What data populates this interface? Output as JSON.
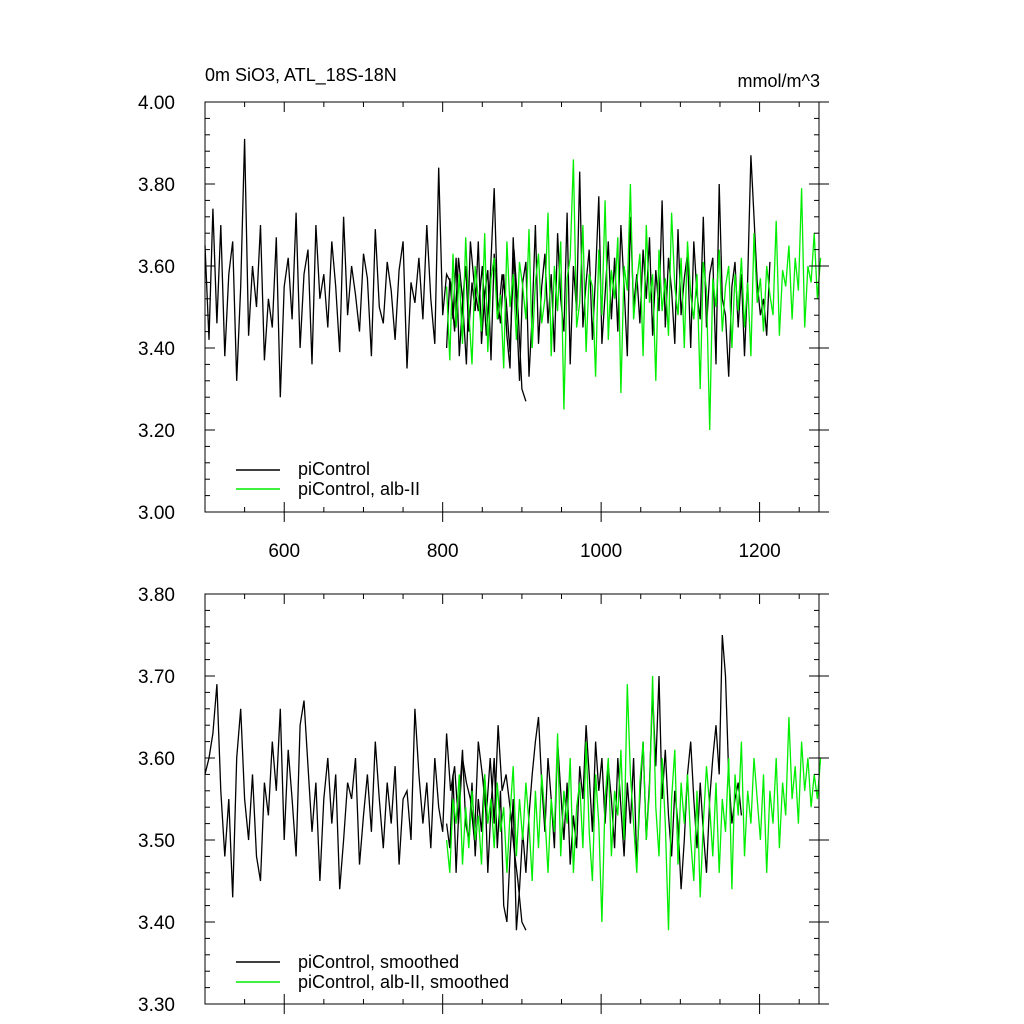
{
  "chart_data": [
    {
      "type": "line",
      "title": "0m SiO3, ATL_18S-18N",
      "units": "mmol/m^3",
      "xlim": [
        500,
        1275
      ],
      "ylim": [
        3.0,
        4.0
      ],
      "x_ticks": [
        600,
        800,
        1000,
        1200
      ],
      "x_tick_labels": [
        "600",
        "800",
        "1000",
        "1200"
      ],
      "y_ticks": [
        3.0,
        3.2,
        3.4,
        3.6,
        3.8,
        4.0
      ],
      "y_tick_labels": [
        "3.00",
        "3.20",
        "3.40",
        "3.60",
        "3.80",
        "4.00"
      ],
      "grid": false,
      "legend_position": "bottom-left",
      "series": [
        {
          "name": "piControl",
          "color": "#000000",
          "x_start": 500,
          "x_step": 5,
          "y": [
            3.65,
            3.42,
            3.74,
            3.46,
            3.7,
            3.38,
            3.58,
            3.66,
            3.32,
            3.55,
            3.91,
            3.43,
            3.6,
            3.5,
            3.7,
            3.37,
            3.52,
            3.45,
            3.67,
            3.28,
            3.55,
            3.62,
            3.47,
            3.73,
            3.4,
            3.58,
            3.64,
            3.36,
            3.7,
            3.52,
            3.58,
            3.45,
            3.66,
            3.55,
            3.39,
            3.72,
            3.48,
            3.6,
            3.53,
            3.44,
            3.63,
            3.57,
            3.38,
            3.69,
            3.5,
            3.46,
            3.61,
            3.54,
            3.42,
            3.59,
            3.66,
            3.35,
            3.56,
            3.51,
            3.62,
            3.47,
            3.7,
            3.52,
            3.41,
            3.84,
            3.48,
            3.58,
            3.56,
            3.44,
            3.62,
            3.52,
            3.36,
            3.66,
            3.55,
            3.49,
            3.6,
            3.43,
            3.57,
            3.79,
            3.47,
            3.58,
            3.52,
            3.39,
            3.64,
            3.5,
            3.3,
            3.27
          ],
          "x_labels_note": ""
        },
        {
          "name": "piControl",
          "color": "#000000",
          "x_start": 805,
          "x_step": 4,
          "y": [
            3.4,
            3.57,
            3.47,
            3.62,
            3.38,
            3.51,
            3.6,
            3.44,
            3.56,
            3.49,
            3.66,
            3.41,
            3.53,
            3.59,
            3.37,
            3.63,
            3.52,
            3.46,
            3.58,
            3.43,
            3.35,
            3.67,
            3.5,
            3.32,
            3.56,
            3.61,
            3.33,
            3.48,
            3.7,
            3.41,
            3.55,
            3.63,
            3.46,
            3.58,
            3.39,
            3.68,
            3.52,
            3.44,
            3.73,
            3.36,
            3.6,
            3.49,
            3.83,
            3.45,
            3.56,
            3.64,
            3.42,
            3.58,
            3.77,
            3.41,
            3.53,
            3.66,
            3.47,
            3.62,
            3.44,
            3.7,
            3.55,
            3.38,
            3.72,
            3.5,
            3.58,
            3.46,
            3.64,
            3.52,
            3.67,
            3.43,
            3.59,
            3.49,
            3.76,
            3.45,
            3.62,
            3.54,
            3.41,
            3.69,
            3.48,
            3.57,
            3.63,
            3.4,
            3.66,
            3.53,
            3.47,
            3.72,
            3.45,
            3.58,
            3.62,
            3.36,
            3.8,
            3.52,
            3.48,
            3.33,
            3.55,
            3.61,
            3.45,
            3.58,
            3.38,
            3.57,
            3.87,
            3.72,
            3.56,
            3.48,
            3.52,
            3.43,
            3.61
          ]
        },
        {
          "name": "piControl, alb-II",
          "color": "#00ee00",
          "x_start": 805,
          "x_step": 4,
          "y": [
            3.55,
            3.37,
            3.63,
            3.45,
            3.58,
            3.41,
            3.67,
            3.49,
            3.36,
            3.6,
            3.52,
            3.44,
            3.68,
            3.39,
            3.57,
            3.62,
            3.47,
            3.53,
            3.35,
            3.66,
            3.5,
            3.58,
            3.42,
            3.61,
            3.55,
            3.47,
            3.69,
            3.4,
            3.56,
            3.63,
            3.46,
            3.52,
            3.73,
            3.38,
            3.6,
            3.49,
            3.66,
            3.25,
            3.57,
            3.62,
            3.86,
            3.45,
            3.51,
            3.7,
            3.39,
            3.58,
            3.55,
            3.33,
            3.64,
            3.48,
            3.76,
            3.42,
            3.59,
            3.52,
            3.67,
            3.29,
            3.6,
            3.54,
            3.8,
            3.47,
            3.56,
            3.63,
            3.38,
            3.7,
            3.51,
            3.58,
            3.32,
            3.64,
            3.49,
            3.57,
            3.43,
            3.73,
            3.55,
            3.48,
            3.62,
            3.4,
            3.66,
            3.53,
            3.47,
            3.58,
            3.3,
            3.61,
            3.54,
            3.2,
            3.57,
            3.5,
            3.64,
            3.44,
            3.55,
            3.6,
            3.4,
            3.58,
            3.49,
            3.62,
            3.45,
            3.56,
            3.38,
            3.68,
            3.51,
            3.57,
            3.44,
            3.6,
            3.53,
            3.48,
            3.71,
            3.43,
            3.59,
            3.55,
            3.65,
            3.47,
            3.62,
            3.54,
            3.79,
            3.45,
            3.6,
            3.56,
            3.68,
            3.52,
            3.62
          ]
        }
      ],
      "legend": [
        "piControl",
        "piControl, alb-II"
      ]
    },
    {
      "type": "line",
      "xlim": [
        500,
        1275
      ],
      "ylim": [
        3.3,
        3.8
      ],
      "x_ticks": [
        600,
        800,
        1000,
        1200
      ],
      "y_ticks": [
        3.3,
        3.4,
        3.5,
        3.6,
        3.7,
        3.8
      ],
      "y_tick_labels": [
        "3.30",
        "3.40",
        "3.50",
        "3.60",
        "3.70",
        "3.80"
      ],
      "grid": false,
      "legend_position": "bottom-left",
      "series": [
        {
          "name": "piControl, smoothed",
          "color": "#000000",
          "x_start": 500,
          "x_step": 5,
          "y": [
            3.58,
            3.6,
            3.63,
            3.69,
            3.56,
            3.48,
            3.55,
            3.43,
            3.6,
            3.66,
            3.55,
            3.5,
            3.58,
            3.48,
            3.45,
            3.57,
            3.53,
            3.62,
            3.56,
            3.66,
            3.5,
            3.61,
            3.55,
            3.48,
            3.64,
            3.67,
            3.59,
            3.51,
            3.57,
            3.45,
            3.55,
            3.6,
            3.52,
            3.58,
            3.44,
            3.5,
            3.57,
            3.55,
            3.6,
            3.47,
            3.53,
            3.58,
            3.51,
            3.62,
            3.55,
            3.49,
            3.57,
            3.52,
            3.59,
            3.47,
            3.55,
            3.56,
            3.5,
            3.66,
            3.58,
            3.52,
            3.57,
            3.49,
            3.6,
            3.54,
            3.51,
            3.63,
            3.56,
            3.59,
            3.52,
            3.6,
            3.57,
            3.55,
            3.5,
            3.62,
            3.58,
            3.53,
            3.6,
            3.52,
            3.64,
            3.56,
            3.58,
            3.54,
            3.49,
            3.45,
            3.4,
            3.39
          ]
        },
        {
          "name": "piControl, smoothed",
          "color": "#000000",
          "x_start": 805,
          "x_step": 4,
          "y": [
            3.52,
            3.49,
            3.58,
            3.46,
            3.55,
            3.61,
            3.52,
            3.5,
            3.57,
            3.48,
            3.55,
            3.51,
            3.58,
            3.46,
            3.54,
            3.6,
            3.49,
            3.56,
            3.42,
            3.4,
            3.48,
            3.55,
            3.39,
            3.44,
            3.51,
            3.46,
            3.53,
            3.58,
            3.62,
            3.65,
            3.57,
            3.51,
            3.6,
            3.55,
            3.49,
            3.62,
            3.56,
            3.5,
            3.57,
            3.47,
            3.53,
            3.49,
            3.59,
            3.55,
            3.64,
            3.58,
            3.51,
            3.62,
            3.56,
            3.6,
            3.52,
            3.59,
            3.55,
            3.49,
            3.6,
            3.54,
            3.48,
            3.57,
            3.52,
            3.6,
            3.47,
            3.55,
            3.62,
            3.5,
            3.57,
            3.68,
            3.59,
            3.7,
            3.55,
            3.61,
            3.53,
            3.48,
            3.56,
            3.52,
            3.44,
            3.5,
            3.58,
            3.62,
            3.55,
            3.49,
            3.57,
            3.51,
            3.46,
            3.55,
            3.6,
            3.64,
            3.58,
            3.75,
            3.7,
            3.58,
            3.52,
            3.55,
            3.57,
            3.53
          ]
        },
        {
          "name": "piControl, alb-II, smoothed",
          "color": "#00ee00",
          "x_start": 805,
          "x_step": 4,
          "y": [
            3.5,
            3.46,
            3.55,
            3.52,
            3.58,
            3.47,
            3.54,
            3.49,
            3.56,
            3.5,
            3.53,
            3.47,
            3.58,
            3.52,
            3.55,
            3.49,
            3.57,
            3.51,
            3.54,
            3.46,
            3.53,
            3.59,
            3.48,
            3.55,
            3.5,
            3.57,
            3.52,
            3.45,
            3.56,
            3.49,
            3.58,
            3.53,
            3.46,
            3.55,
            3.51,
            3.63,
            3.48,
            3.56,
            3.52,
            3.6,
            3.46,
            3.54,
            3.57,
            3.49,
            3.62,
            3.51,
            3.45,
            3.58,
            3.52,
            3.4,
            3.55,
            3.6,
            3.48,
            3.56,
            3.53,
            3.61,
            3.5,
            3.69,
            3.58,
            3.52,
            3.46,
            3.57,
            3.62,
            3.5,
            3.56,
            3.7,
            3.54,
            3.48,
            3.6,
            3.52,
            3.39,
            3.55,
            3.61,
            3.47,
            3.57,
            3.52,
            3.58,
            3.5,
            3.45,
            3.56,
            3.43,
            3.52,
            3.59,
            3.54,
            3.48,
            3.57,
            3.46,
            3.55,
            3.51,
            3.6,
            3.44,
            3.58,
            3.53,
            3.62,
            3.48,
            3.56,
            3.52,
            3.6,
            3.55,
            3.5,
            3.58,
            3.46,
            3.56,
            3.52,
            3.6,
            3.49,
            3.57,
            3.53,
            3.65,
            3.55,
            3.59,
            3.52,
            3.62,
            3.56,
            3.6,
            3.54,
            3.58,
            3.55,
            3.6
          ]
        }
      ],
      "legend": [
        "piControl, smoothed",
        "piControl, alb-II, smoothed"
      ]
    }
  ]
}
